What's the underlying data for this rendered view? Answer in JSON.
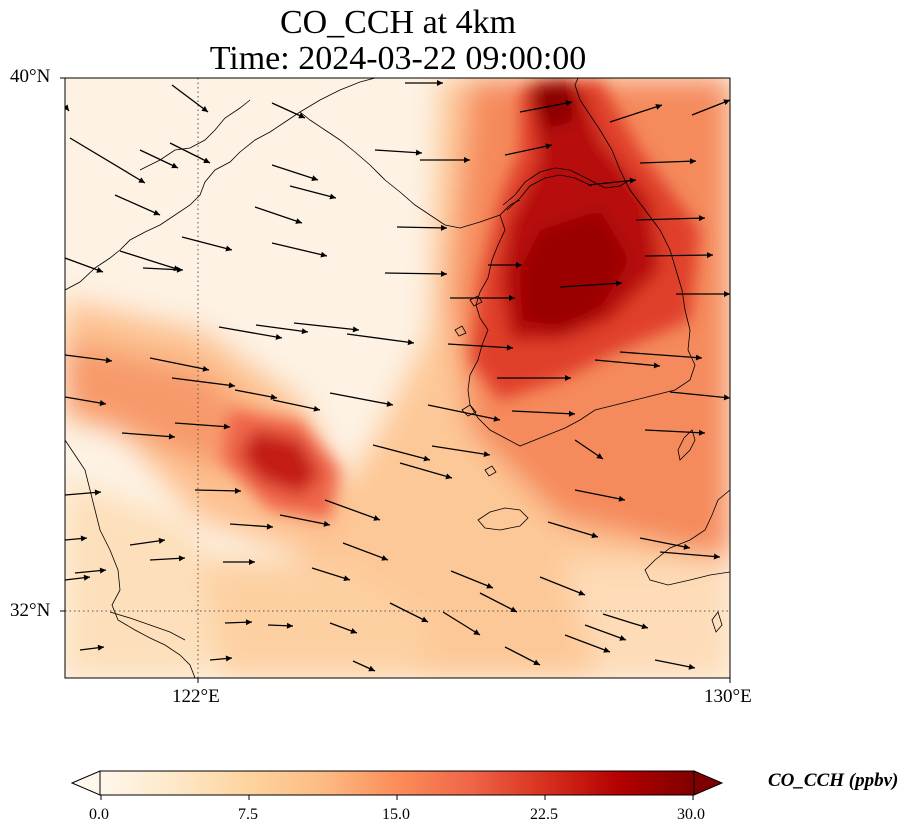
{
  "title_line1": "CO_CCH at 4km",
  "title_line2": "Time: 2024-03-22 09:00:00",
  "variable": "CO_CCH",
  "unit": "ppbv",
  "map": {
    "extent": {
      "lon_min": 119,
      "lon_max": 130,
      "lat_min": 31,
      "lat_max": 40
    },
    "lat_labels": [
      "40°N",
      "32°N"
    ],
    "lon_labels": [
      "122°E",
      "130°E"
    ],
    "gridlines": {
      "lon": [
        122
      ],
      "lat": [
        32
      ],
      "style": "dotted"
    },
    "features": [
      "coastlines",
      "wind vectors"
    ]
  },
  "colorbar": {
    "label": "CO_CCH (ppbv)",
    "ticks": [
      "0.0",
      "7.5",
      "15.0",
      "22.5",
      "30.0"
    ],
    "min": 0,
    "max": 30,
    "extend": "both",
    "colormap": "OrRd",
    "colors": [
      "#fff7ec",
      "#fee8c8",
      "#fdd49e",
      "#fdbb84",
      "#fc8d59",
      "#ef6548",
      "#d7301f",
      "#b30000",
      "#7f0000"
    ]
  }
}
